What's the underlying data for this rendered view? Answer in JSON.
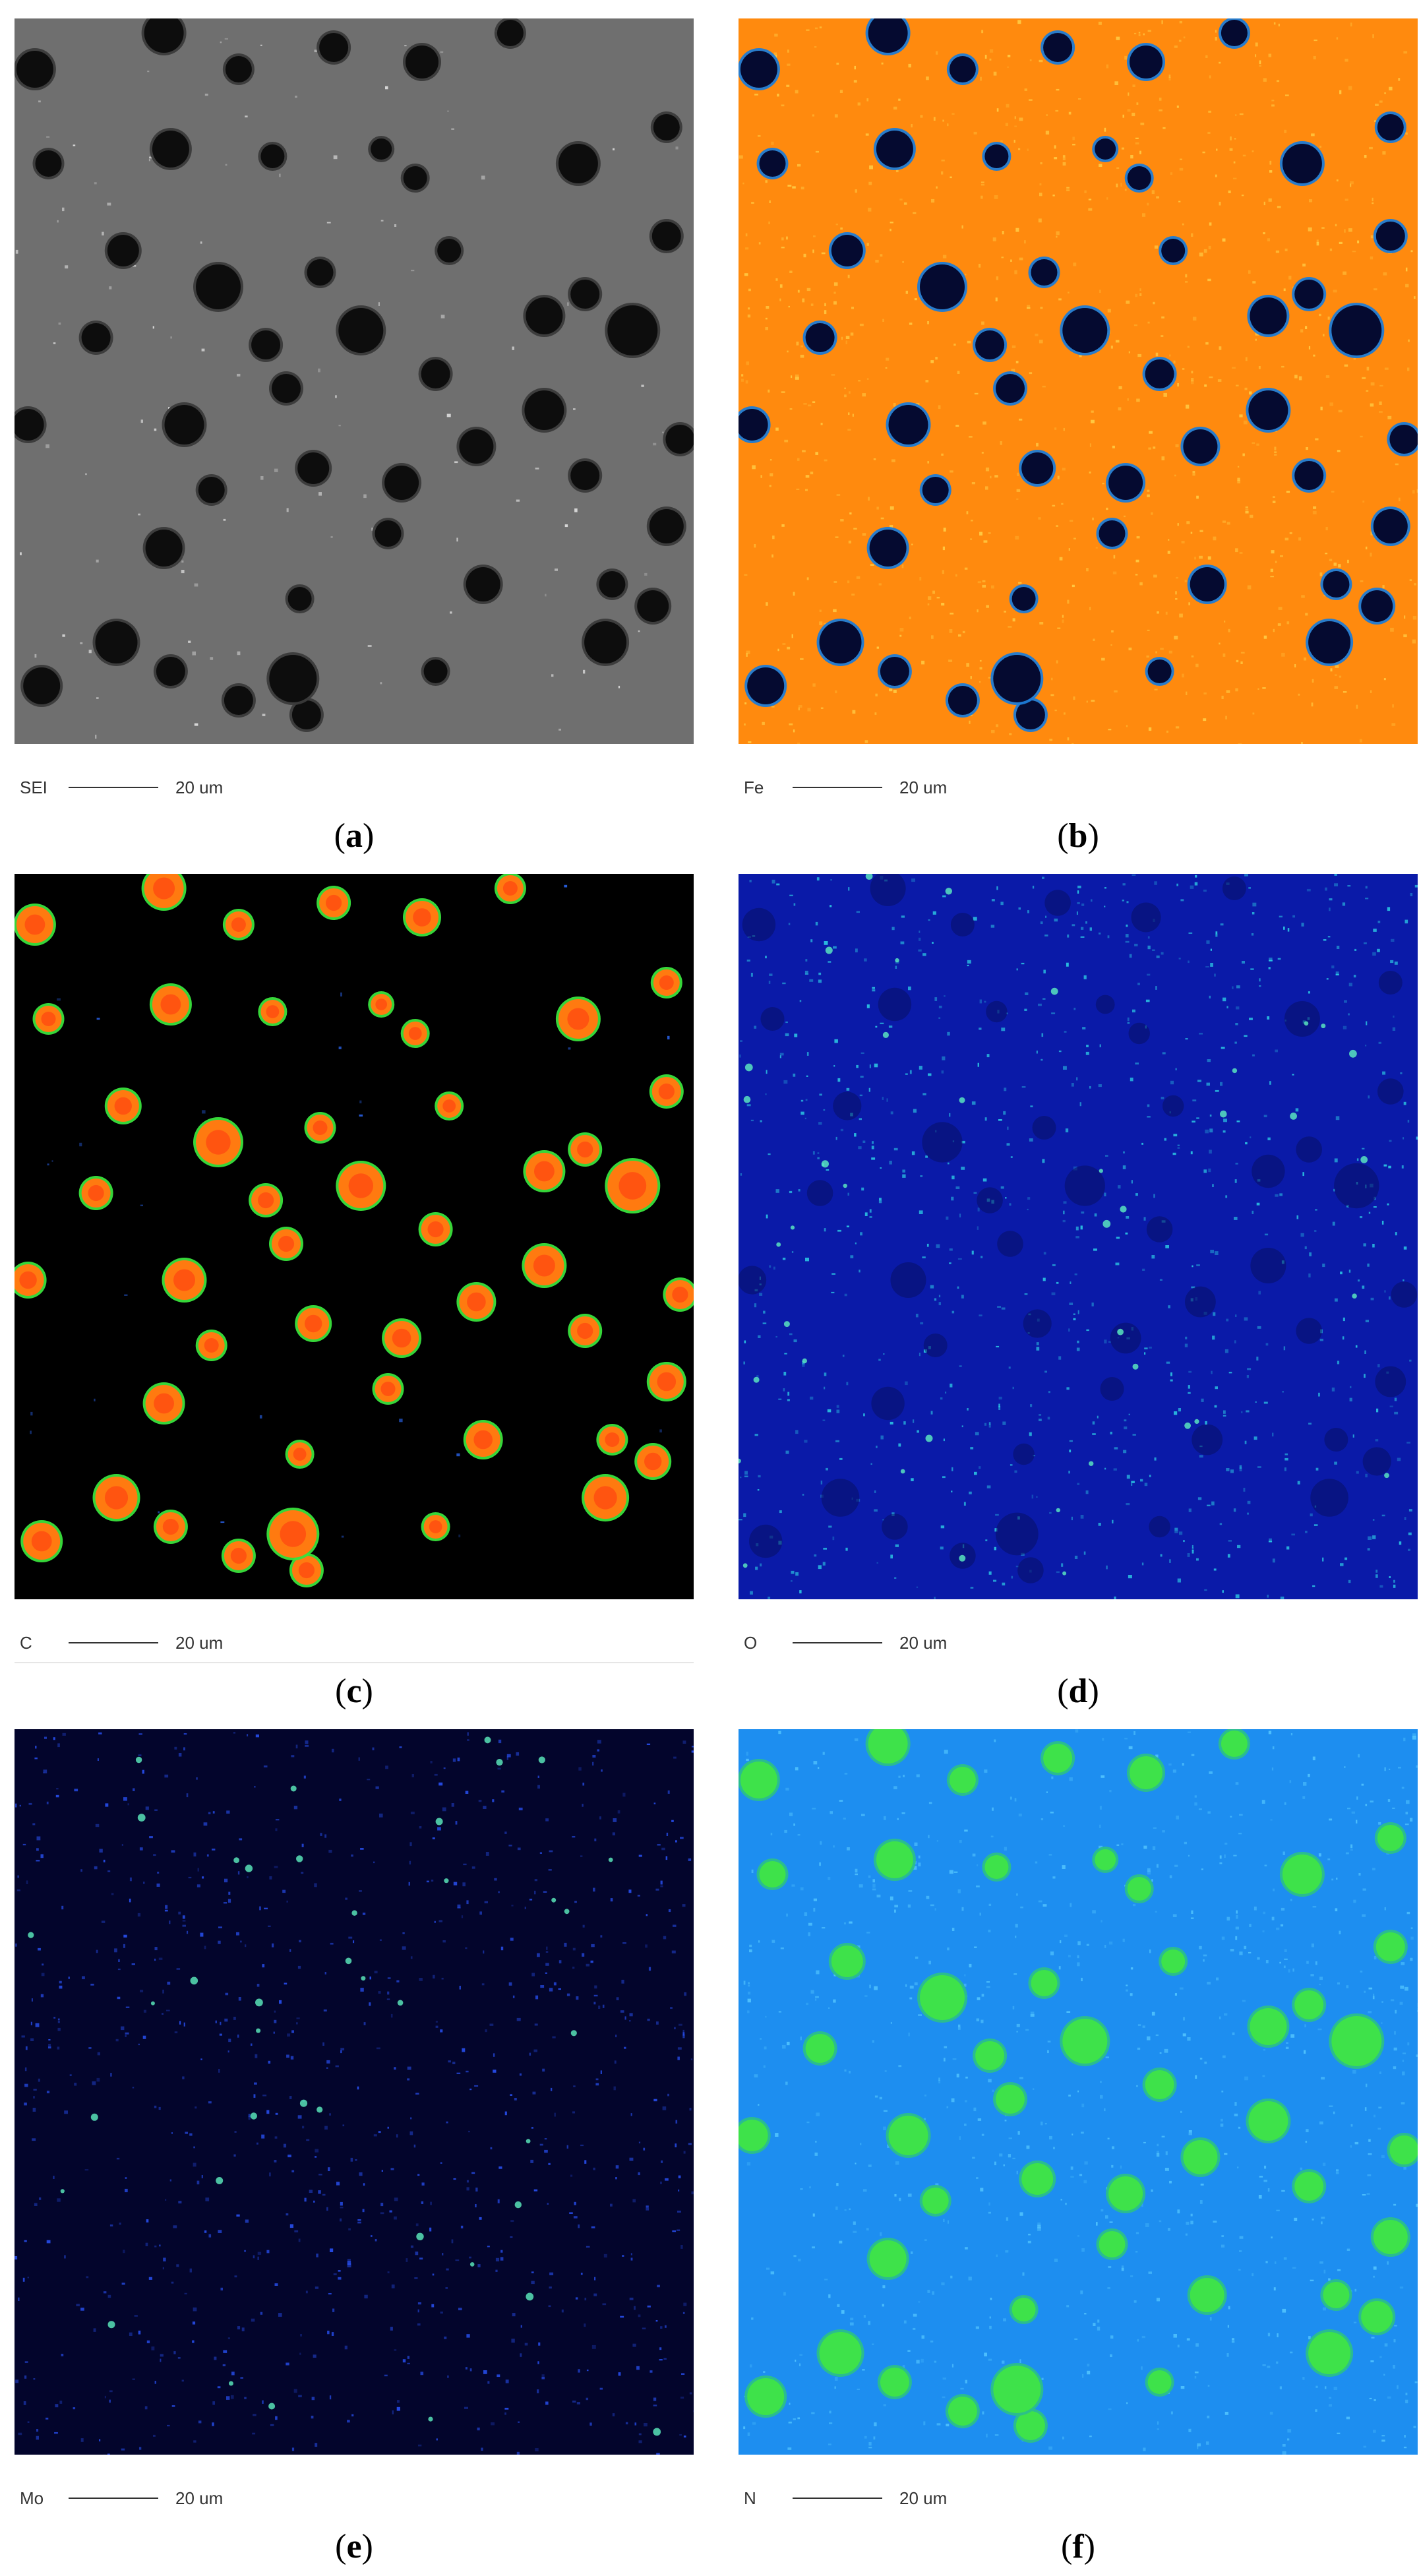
{
  "figure": {
    "panels": [
      {
        "id": "a",
        "label": "SEI",
        "scale": "20 um",
        "caption_open": "(",
        "caption_letter": "a",
        "caption_close": ")",
        "colors": {
          "background": "#6f6f6f",
          "particle": "#0d0d0d",
          "ring": "#3a3a3a",
          "speck": "#eaeaea"
        }
      },
      {
        "id": "b",
        "label": "Fe",
        "scale": "20 um",
        "caption_open": "(",
        "caption_letter": "b",
        "caption_close": ")",
        "colors": {
          "background": "#ff8a0e",
          "particle": "#050a30",
          "ring": "#1e7bd6",
          "speck": "#ffd24a"
        }
      },
      {
        "id": "c",
        "label": "C",
        "scale": "20 um",
        "caption_open": "(",
        "caption_letter": "c",
        "caption_close": ")",
        "colors": {
          "background": "#000000",
          "particle": "#ff7a10",
          "ring": "#39e13c",
          "speck": "#2d6cff"
        }
      },
      {
        "id": "d",
        "label": "O",
        "scale": "20 um",
        "caption_open": "(",
        "caption_letter": "d",
        "caption_close": ")",
        "colors": {
          "background": "#0a1aa8",
          "particle": "#081064",
          "ring": "#0a1aa8",
          "speck": "#2fd6e8"
        }
      },
      {
        "id": "e",
        "label": "Mo",
        "scale": "20 um",
        "caption_open": "(",
        "caption_letter": "e",
        "caption_close": ")",
        "colors": {
          "background": "#03052c",
          "particle": "#03052c",
          "ring": "#03052c",
          "speck": "#2b55ff"
        }
      },
      {
        "id": "f",
        "label": "N",
        "scale": "20 um",
        "caption_open": "(",
        "caption_letter": "f",
        "caption_close": ")",
        "colors": {
          "background": "#1d8ef0",
          "particle": "#3ee24a",
          "ring": "#2bbf8a",
          "speck": "#55c8ff"
        }
      }
    ]
  }
}
